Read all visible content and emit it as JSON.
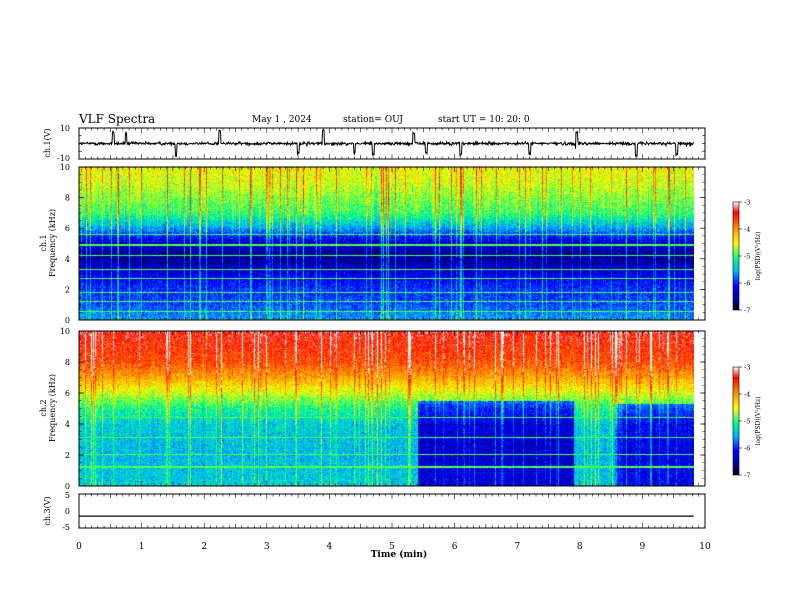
{
  "header": {
    "title": "VLF Spectra",
    "date": "May 1  , 2024",
    "station": "station= OUJ",
    "start": "start  UT  =   10: 20: 0"
  },
  "chart_data": [
    {
      "type": "line",
      "panel": "ch1-waveform",
      "ylabel": "ch.1(V)",
      "ylim": [
        -10,
        10
      ],
      "y_ticks": [
        "10",
        "-10"
      ],
      "xlim": [
        0,
        10
      ],
      "x_ticks": [
        "0",
        "1",
        "2",
        "3",
        "4",
        "5",
        "6",
        "7",
        "8",
        "9",
        "10"
      ],
      "xlabel": "Time  (min)",
      "data_end_min": 9.82,
      "baseline_v": 0,
      "noise_amplitude_v": 1.5,
      "spike_times_min": [
        0.55,
        0.75,
        1.55,
        2.25,
        3.5,
        3.9,
        4.4,
        4.7,
        5.35,
        5.55,
        6.1,
        7.2,
        7.95,
        8.9,
        9.55
      ]
    },
    {
      "type": "heatmap",
      "panel": "ch1-spectrogram",
      "ylabel": "ch.1\nFrequency  (kHz)",
      "ylim": [
        0,
        10
      ],
      "y_ticks": [
        "0",
        "2",
        "4",
        "6",
        "8",
        "10"
      ],
      "xlim": [
        0,
        10
      ],
      "data_end_min": 9.82,
      "colorbar": {
        "label": "log(PSD)(V²/Hz)",
        "range": [
          -7,
          -3
        ],
        "ticks": [
          "-3",
          "-4",
          "-5",
          "-6",
          "-7"
        ]
      },
      "spectral_profile": [
        {
          "f_khz": 0,
          "log_psd": -5.6
        },
        {
          "f_khz": 1,
          "log_psd": -5.9
        },
        {
          "f_khz": 2,
          "log_psd": -6.0
        },
        {
          "f_khz": 3,
          "log_psd": -6.3
        },
        {
          "f_khz": 4,
          "log_psd": -6.6
        },
        {
          "f_khz": 5,
          "log_psd": -6.4
        },
        {
          "f_khz": 6,
          "log_psd": -5.6
        },
        {
          "f_khz": 7,
          "log_psd": -5.0
        },
        {
          "f_khz": 8,
          "log_psd": -4.8
        },
        {
          "f_khz": 9,
          "log_psd": -4.6
        },
        {
          "f_khz": 10,
          "log_psd": -4.5
        }
      ],
      "tone_lines_khz": [
        0.5,
        1.2,
        1.8,
        2.7,
        3.3,
        4.2,
        4.9,
        5.6
      ]
    },
    {
      "type": "heatmap",
      "panel": "ch2-spectrogram",
      "ylabel": "ch.2\nFrequency  (kHz)",
      "ylim": [
        0,
        10
      ],
      "y_ticks": [
        "0",
        "2",
        "4",
        "6",
        "8",
        "10"
      ],
      "xlim": [
        0,
        10
      ],
      "data_end_min": 9.82,
      "colorbar": {
        "label": "log(PSD)(V²/Hz)",
        "range": [
          -7,
          -3
        ],
        "ticks": [
          "-3",
          "-4",
          "-5",
          "-6",
          "-7"
        ]
      },
      "spectral_profile": [
        {
          "f_khz": 0,
          "log_psd": -5.4
        },
        {
          "f_khz": 2,
          "log_psd": -5.5
        },
        {
          "f_khz": 4,
          "log_psd": -5.4
        },
        {
          "f_khz": 5,
          "log_psd": -5.1
        },
        {
          "f_khz": 6,
          "log_psd": -4.6
        },
        {
          "f_khz": 7,
          "log_psd": -4.1
        },
        {
          "f_khz": 8,
          "log_psd": -3.7
        },
        {
          "f_khz": 10,
          "log_psd": -3.4
        }
      ],
      "quiet_segments": [
        {
          "t_start_min": 5.4,
          "t_end_min": 7.9,
          "f_max_khz": 5.5,
          "log_psd_drop": 0.9
        },
        {
          "t_start_min": 8.55,
          "t_end_min": 9.82,
          "f_max_khz": 5.3,
          "log_psd_drop": 0.8
        }
      ],
      "tone_lines_khz": [
        1.2,
        2.0,
        3.1,
        4.4
      ]
    },
    {
      "type": "line",
      "panel": "ch3-waveform",
      "ylabel": "ch.3(V)",
      "ylim": [
        -5,
        5
      ],
      "y_ticks": [
        "5",
        "0",
        "-5"
      ],
      "xlim": [
        0,
        10
      ],
      "data_end_min": 9.82,
      "baseline_v": -1.5
    }
  ]
}
